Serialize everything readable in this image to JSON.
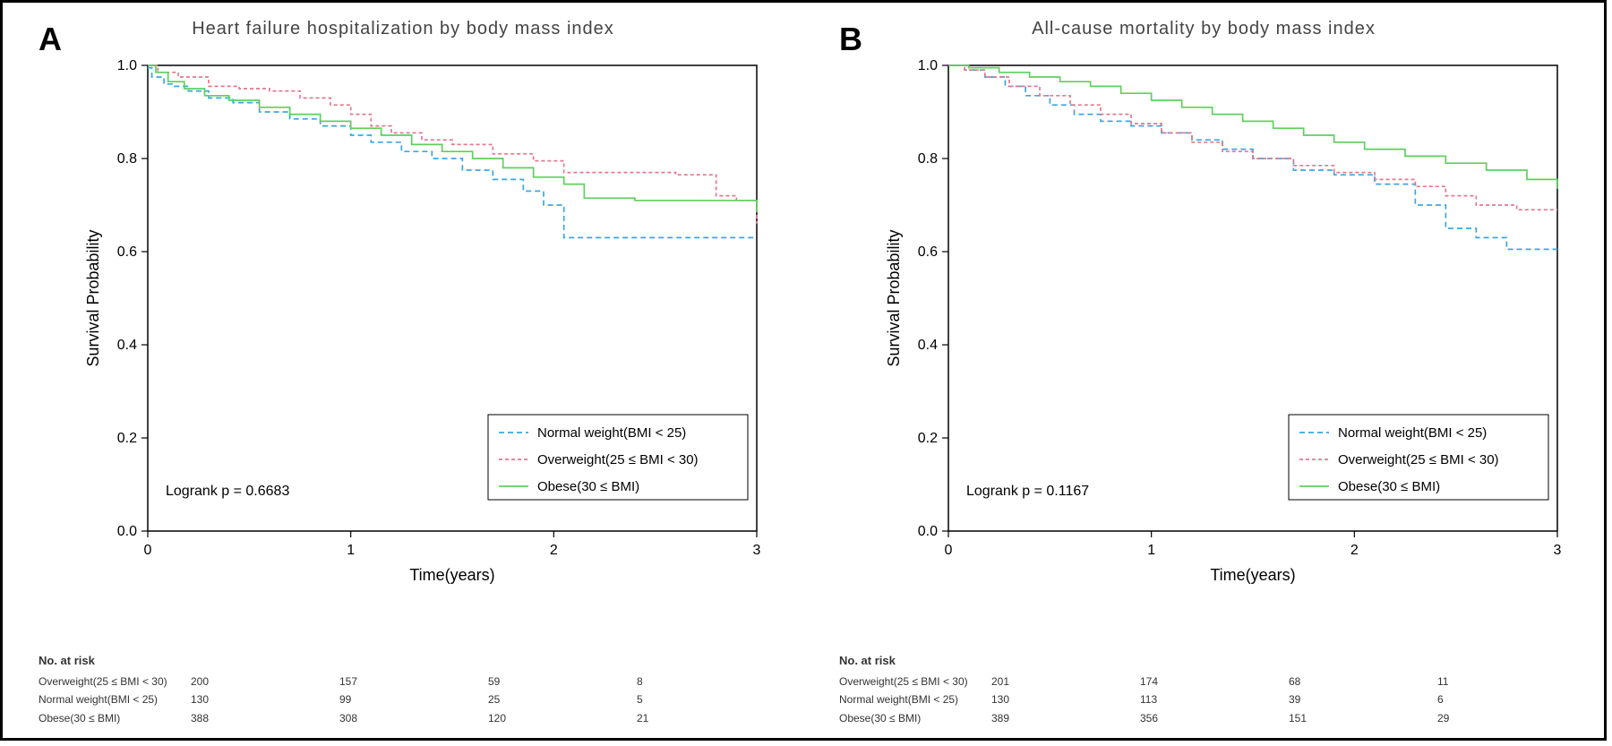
{
  "figure": {
    "border_color": "#000000",
    "background": "#ffffff"
  },
  "panels": [
    {
      "letter": "A",
      "title": "Heart failure hospitalization by body mass index",
      "ylabel": "Survival Probability",
      "xlabel": "Time(years)",
      "xlim": [
        0,
        3
      ],
      "ylim": [
        0,
        1.0
      ],
      "yticks": [
        0.0,
        0.2,
        0.4,
        0.6,
        0.8,
        1.0
      ],
      "xticks": [
        0,
        1,
        2,
        3
      ],
      "logrank": "Logrank p = 0.6683",
      "series": [
        {
          "label": "Normal weight(BMI < 25)",
          "color": "#3aa6e4",
          "dash": "6,4",
          "data": [
            [
              0.0,
              0.995
            ],
            [
              0.02,
              0.975
            ],
            [
              0.08,
              0.96
            ],
            [
              0.12,
              0.955
            ],
            [
              0.2,
              0.945
            ],
            [
              0.3,
              0.93
            ],
            [
              0.42,
              0.92
            ],
            [
              0.55,
              0.9
            ],
            [
              0.7,
              0.885
            ],
            [
              0.85,
              0.87
            ],
            [
              1.0,
              0.85
            ],
            [
              1.1,
              0.835
            ],
            [
              1.25,
              0.815
            ],
            [
              1.4,
              0.8
            ],
            [
              1.55,
              0.775
            ],
            [
              1.7,
              0.755
            ],
            [
              1.85,
              0.73
            ],
            [
              1.95,
              0.7
            ],
            [
              2.05,
              0.63
            ],
            [
              2.3,
              0.63
            ],
            [
              2.6,
              0.63
            ],
            [
              3.0,
              0.63
            ]
          ]
        },
        {
          "label": "Overweight(25 ≤ BMI < 30)",
          "color": "#e5788c",
          "dash": "4,3",
          "data": [
            [
              0.0,
              1.0
            ],
            [
              0.05,
              0.985
            ],
            [
              0.15,
              0.975
            ],
            [
              0.3,
              0.955
            ],
            [
              0.45,
              0.95
            ],
            [
              0.6,
              0.945
            ],
            [
              0.75,
              0.93
            ],
            [
              0.9,
              0.915
            ],
            [
              1.0,
              0.895
            ],
            [
              1.1,
              0.87
            ],
            [
              1.2,
              0.855
            ],
            [
              1.35,
              0.84
            ],
            [
              1.5,
              0.83
            ],
            [
              1.7,
              0.81
            ],
            [
              1.9,
              0.795
            ],
            [
              2.05,
              0.77
            ],
            [
              2.3,
              0.77
            ],
            [
              2.6,
              0.765
            ],
            [
              2.8,
              0.72
            ],
            [
              2.9,
              0.71
            ],
            [
              3.0,
              0.66
            ]
          ]
        },
        {
          "label": "Obese(30 ≤ BMI)",
          "color": "#5fcf5f",
          "dash": "",
          "data": [
            [
              0.0,
              1.0
            ],
            [
              0.04,
              0.985
            ],
            [
              0.1,
              0.965
            ],
            [
              0.18,
              0.95
            ],
            [
              0.28,
              0.935
            ],
            [
              0.4,
              0.925
            ],
            [
              0.55,
              0.91
            ],
            [
              0.7,
              0.895
            ],
            [
              0.85,
              0.88
            ],
            [
              1.0,
              0.865
            ],
            [
              1.15,
              0.85
            ],
            [
              1.3,
              0.83
            ],
            [
              1.45,
              0.815
            ],
            [
              1.6,
              0.8
            ],
            [
              1.75,
              0.78
            ],
            [
              1.9,
              0.76
            ],
            [
              2.05,
              0.745
            ],
            [
              2.15,
              0.715
            ],
            [
              2.4,
              0.71
            ],
            [
              2.7,
              0.71
            ],
            [
              3.0,
              0.685
            ]
          ]
        }
      ],
      "risk": {
        "title": "No. at risk",
        "rows": [
          {
            "label": "Overweight(25 ≤ BMI < 30)",
            "values": [
              "200",
              "157",
              "59",
              "8"
            ]
          },
          {
            "label": "Normal weight(BMI < 25)",
            "values": [
              "130",
              "99",
              "25",
              "5"
            ]
          },
          {
            "label": "Obese(30 ≤ BMI)",
            "values": [
              "388",
              "308",
              "120",
              "21"
            ]
          }
        ]
      }
    },
    {
      "letter": "B",
      "title": "All-cause mortality by body mass index",
      "ylabel": "Survival Probability",
      "xlabel": "Time(years)",
      "xlim": [
        0,
        3
      ],
      "ylim": [
        0,
        1.0
      ],
      "yticks": [
        0.0,
        0.2,
        0.4,
        0.6,
        0.8,
        1.0
      ],
      "xticks": [
        0,
        1,
        2,
        3
      ],
      "logrank": "Logrank p = 0.1167",
      "series": [
        {
          "label": "Normal weight(BMI < 25)",
          "color": "#3aa6e4",
          "dash": "6,4",
          "data": [
            [
              0.0,
              1.0
            ],
            [
              0.08,
              0.99
            ],
            [
              0.18,
              0.975
            ],
            [
              0.28,
              0.955
            ],
            [
              0.38,
              0.935
            ],
            [
              0.5,
              0.915
            ],
            [
              0.62,
              0.895
            ],
            [
              0.75,
              0.88
            ],
            [
              0.9,
              0.87
            ],
            [
              1.05,
              0.855
            ],
            [
              1.2,
              0.84
            ],
            [
              1.35,
              0.82
            ],
            [
              1.5,
              0.8
            ],
            [
              1.7,
              0.775
            ],
            [
              1.9,
              0.765
            ],
            [
              2.1,
              0.745
            ],
            [
              2.3,
              0.7
            ],
            [
              2.45,
              0.65
            ],
            [
              2.6,
              0.63
            ],
            [
              2.75,
              0.605
            ],
            [
              3.0,
              0.605
            ]
          ]
        },
        {
          "label": "Overweight(25 ≤ BMI < 30)",
          "color": "#e5788c",
          "dash": "4,3",
          "data": [
            [
              0.0,
              1.0
            ],
            [
              0.08,
              0.99
            ],
            [
              0.18,
              0.975
            ],
            [
              0.3,
              0.955
            ],
            [
              0.45,
              0.935
            ],
            [
              0.6,
              0.915
            ],
            [
              0.75,
              0.895
            ],
            [
              0.9,
              0.875
            ],
            [
              1.05,
              0.855
            ],
            [
              1.2,
              0.835
            ],
            [
              1.35,
              0.815
            ],
            [
              1.5,
              0.8
            ],
            [
              1.7,
              0.785
            ],
            [
              1.9,
              0.77
            ],
            [
              2.1,
              0.755
            ],
            [
              2.3,
              0.74
            ],
            [
              2.45,
              0.72
            ],
            [
              2.6,
              0.7
            ],
            [
              2.8,
              0.69
            ],
            [
              3.0,
              0.69
            ]
          ]
        },
        {
          "label": "Obese(30 ≤ BMI)",
          "color": "#5fcf5f",
          "dash": "",
          "data": [
            [
              0.0,
              1.0
            ],
            [
              0.1,
              0.995
            ],
            [
              0.25,
              0.985
            ],
            [
              0.4,
              0.975
            ],
            [
              0.55,
              0.965
            ],
            [
              0.7,
              0.955
            ],
            [
              0.85,
              0.94
            ],
            [
              1.0,
              0.925
            ],
            [
              1.15,
              0.91
            ],
            [
              1.3,
              0.895
            ],
            [
              1.45,
              0.88
            ],
            [
              1.6,
              0.865
            ],
            [
              1.75,
              0.85
            ],
            [
              1.9,
              0.835
            ],
            [
              2.05,
              0.82
            ],
            [
              2.25,
              0.805
            ],
            [
              2.45,
              0.79
            ],
            [
              2.65,
              0.775
            ],
            [
              2.85,
              0.755
            ],
            [
              3.0,
              0.735
            ]
          ]
        }
      ],
      "risk": {
        "title": "No. at risk",
        "rows": [
          {
            "label": "Overweight(25 ≤ BMI < 30)",
            "values": [
              "201",
              "174",
              "68",
              "11"
            ]
          },
          {
            "label": "Normal weight(BMI < 25)",
            "values": [
              "130",
              "113",
              "39",
              "6"
            ]
          },
          {
            "label": "Obese(30 ≤ BMI)",
            "values": [
              "389",
              "356",
              "151",
              "29"
            ]
          }
        ]
      }
    }
  ],
  "legend": {
    "box_stroke": "#000000",
    "box_fill": "#ffffff"
  },
  "style": {
    "axis_color": "#000000",
    "tick_color": "#000000",
    "title_fontsize": 20,
    "label_fontsize": 18,
    "tick_fontsize": 16,
    "legend_fontsize": 15,
    "letter_fontsize": 36,
    "line_width": 1.7
  }
}
